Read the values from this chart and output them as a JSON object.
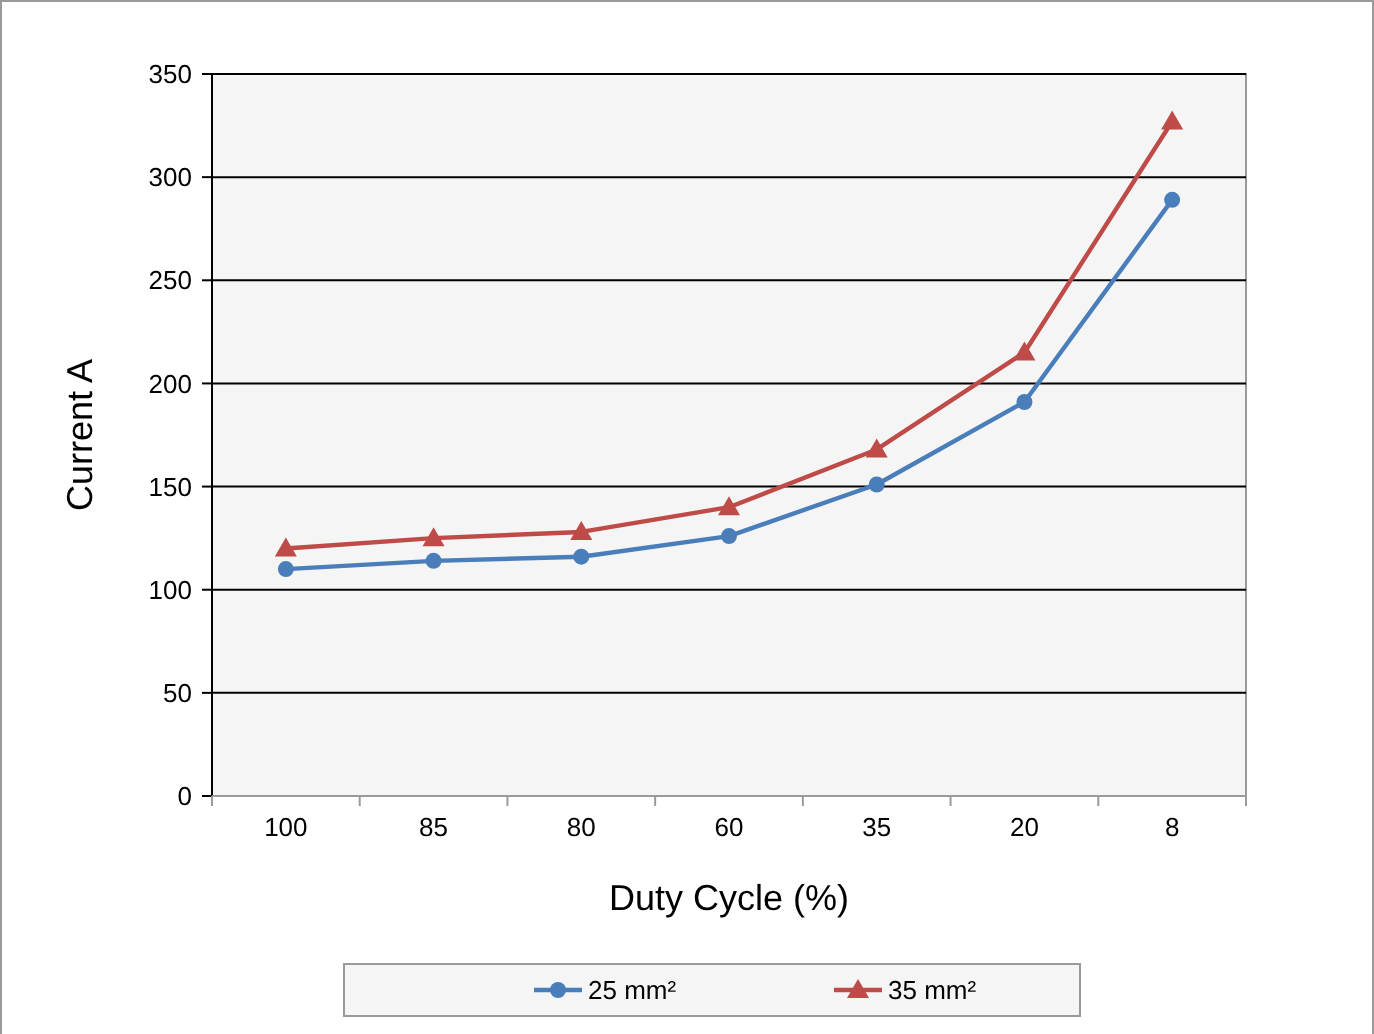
{
  "chart_data": {
    "type": "line",
    "xlabel": "Duty Cycle (%)",
    "ylabel": "Current A",
    "categories": [
      "100",
      "85",
      "80",
      "60",
      "35",
      "20",
      "8"
    ],
    "series": [
      {
        "name": "25 mm²",
        "color": "#4a7ebb",
        "marker": "circle",
        "values": [
          110,
          114,
          116,
          126,
          151,
          191,
          289
        ]
      },
      {
        "name": "35 mm²",
        "color": "#be4b48",
        "marker": "triangle",
        "values": [
          120,
          125,
          128,
          140,
          168,
          215,
          327
        ]
      }
    ],
    "ylim": [
      0,
      350
    ],
    "yticks": [
      0,
      50,
      100,
      150,
      200,
      250,
      300,
      350
    ],
    "grid": "y",
    "legend": "bottom",
    "line_style": "solid"
  }
}
